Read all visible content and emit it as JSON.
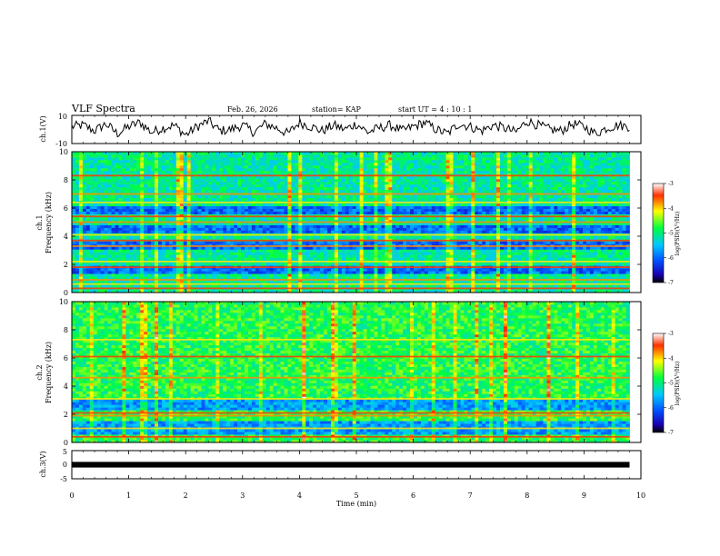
{
  "header": {
    "title": "VLF Spectra",
    "date": "Feb. 26, 2026",
    "station": "station= KAP",
    "start": "start  UT =   4 : 10 : 1"
  },
  "chart_data": {
    "type": "heatmap",
    "title": "VLF Spectra",
    "xlabel": "Time  (min)",
    "xlim": [
      0,
      10
    ],
    "x_ticks": [
      "0",
      "1",
      "2",
      "3",
      "4",
      "5",
      "6",
      "7",
      "8",
      "9",
      "10"
    ],
    "data_end_min": 9.8,
    "panels": [
      {
        "name": "ch1-waveform",
        "type": "line",
        "ylabel": "ch.1(V)",
        "ylim": [
          -10,
          10
        ],
        "y_ticks": [
          "10",
          "-10"
        ],
        "approx_trace_v": [
          2,
          3,
          -1,
          4,
          -3,
          2,
          5,
          -2,
          1,
          3,
          -4,
          2,
          6,
          -1,
          0,
          3,
          -2,
          4,
          1,
          -3,
          5,
          2,
          -1,
          3,
          0,
          4,
          -2,
          1,
          3,
          -1,
          2,
          5,
          0,
          -3,
          4,
          2,
          -1,
          3,
          1,
          -2,
          6,
          3,
          0,
          -1,
          4,
          2,
          -3,
          1,
          3,
          2
        ]
      },
      {
        "name": "ch1-spectrogram",
        "type": "heatmap",
        "ylabel_top": "ch.1",
        "ylabel": "Frequency  (kHz)",
        "ylim": [
          0,
          10
        ],
        "y_ticks": [
          "0",
          "2",
          "4",
          "6",
          "8",
          "10"
        ],
        "colorbar_label": "log(PSD)(V²/Hz)",
        "colorbar_ticks": [
          "-3",
          "-4",
          "-5",
          "-6",
          "-7"
        ],
        "colorbar_range": [
          -7,
          -3
        ],
        "horizontal_lines_khz": [
          0.3,
          0.6,
          0.9,
          1.8,
          2.2,
          3.3,
          3.7,
          4.1,
          5.0,
          5.4,
          6.4,
          7.0,
          8.3
        ],
        "quiet_bands_khz": [
          [
            3.0,
            3.6
          ],
          [
            4.2,
            4.8
          ],
          [
            5.6,
            6.2
          ],
          [
            1.3,
            2.0
          ]
        ]
      },
      {
        "name": "ch2-spectrogram",
        "type": "heatmap",
        "ylabel_top": "ch.2",
        "ylabel": "Frequency  (kHz)",
        "ylim": [
          0,
          10
        ],
        "y_ticks": [
          "0",
          "2",
          "4",
          "6",
          "8",
          "10"
        ],
        "colorbar_label": "log(PSD)(V²/Hz)",
        "colorbar_ticks": [
          "-3",
          "-4",
          "-5",
          "-6",
          "-7"
        ],
        "colorbar_range": [
          -7,
          -3
        ],
        "horizontal_lines_khz": [
          0.4,
          1.0,
          1.9,
          2.1,
          3.1,
          4.6,
          6.1,
          7.3
        ],
        "quiet_bands_khz": [
          [
            0.6,
            1.6
          ],
          [
            2.3,
            3.0
          ]
        ]
      },
      {
        "name": "ch3-waveform",
        "type": "line",
        "ylabel": "ch.3(V)",
        "ylim": [
          -5,
          5
        ],
        "y_ticks": [
          "5",
          "0",
          "-5"
        ],
        "trace_v": [
          -0.2,
          0.2
        ]
      }
    ]
  }
}
